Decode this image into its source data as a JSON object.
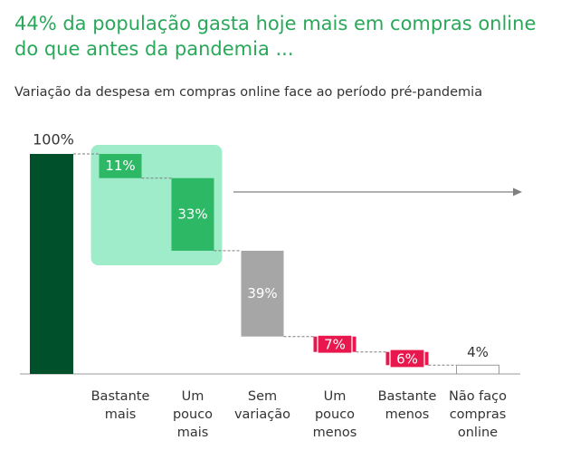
{
  "title_line1": "44% da população gasta hoje mais em compras online",
  "title_line2": "do que antes da pandemia ...",
  "subtitle": "Variação da despesa em compras online face ao período pré-pandemia",
  "chart_data": {
    "type": "bar",
    "subtype": "waterfall",
    "title": "44% da população gasta hoje mais em compras online do que antes da pandemia ...",
    "subtitle": "Variação da despesa em compras online face ao período pré-pandemia",
    "total": {
      "label": "100%",
      "value": 100
    },
    "categories": [
      {
        "lines": [
          "Bastante",
          "mais"
        ],
        "value": 11,
        "label": "11%",
        "color": "#2db865"
      },
      {
        "lines": [
          "Um",
          "pouco",
          "mais"
        ],
        "value": 33,
        "label": "33%",
        "color": "#2db865"
      },
      {
        "lines": [
          "Sem",
          "variação"
        ],
        "value": 39,
        "label": "39%",
        "color": "#a6a6a6"
      },
      {
        "lines": [
          "Um",
          "pouco",
          "menos"
        ],
        "value": 7,
        "label": "7%",
        "color": "#e8174e"
      },
      {
        "lines": [
          "Bastante",
          "menos"
        ],
        "value": 6,
        "label": "6%",
        "color": "#e8174e"
      },
      {
        "lines": [
          "Não faço",
          "compras",
          "online"
        ],
        "value": 4,
        "label": "4%",
        "color": "#ffffff"
      }
    ],
    "highlight_group": [
      0,
      1
    ],
    "colors": {
      "total_bar": "#00502b",
      "highlight_box": "#9feccb",
      "increase": "#2db865",
      "neutral": "#a6a6a6",
      "decrease": "#e8174e",
      "title": "#2aa85a"
    },
    "ylim": [
      0,
      100
    ]
  }
}
